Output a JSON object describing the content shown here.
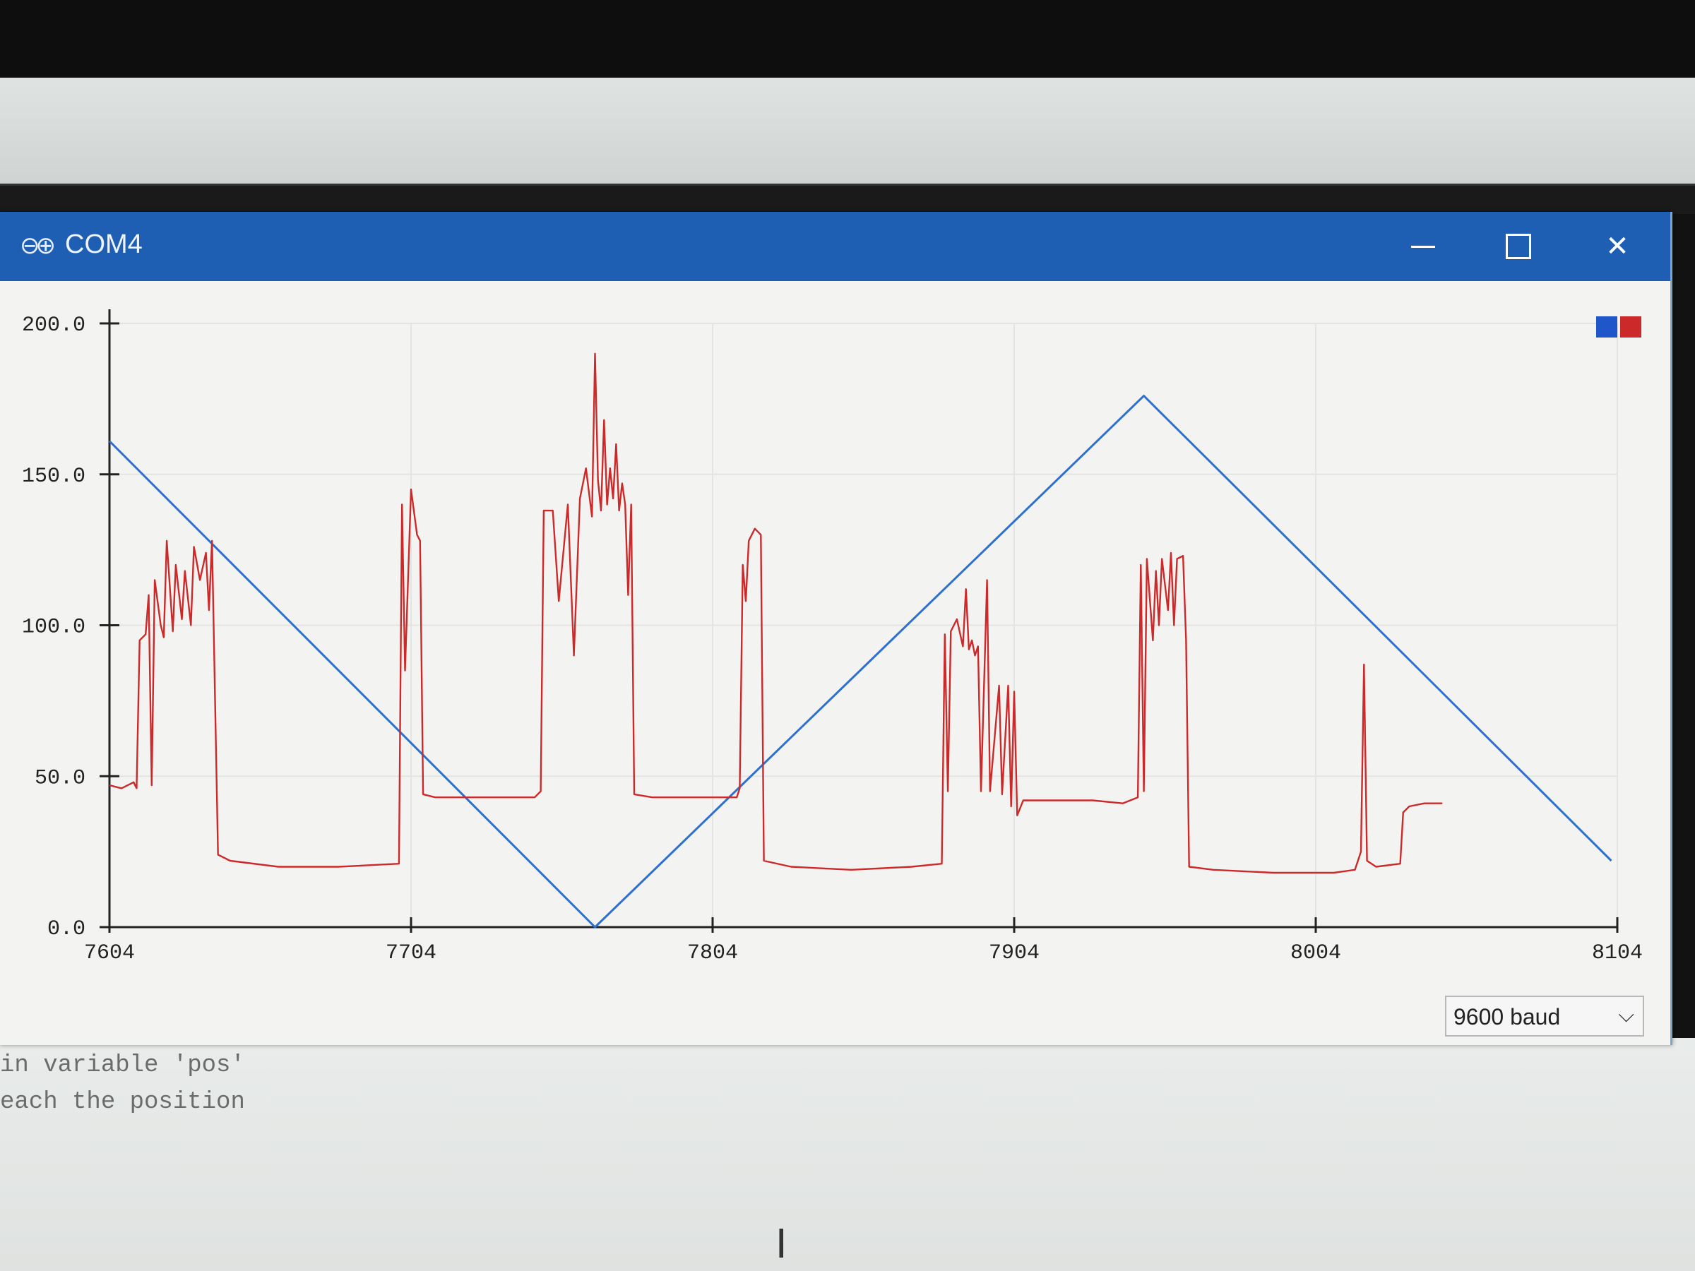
{
  "window": {
    "title": "COM4",
    "logo_glyph": "⊖⊕",
    "close_glyph": "✕"
  },
  "legend_colors": [
    "#1f56c9",
    "#cc2a2a"
  ],
  "baud": {
    "selected": "9600 baud",
    "chevron": "⌵"
  },
  "editor": {
    "lines": [
      "in variable 'pos'",
      "each the position"
    ]
  },
  "cursor_glyph": "I",
  "chart_data": {
    "type": "line",
    "ylim": [
      0,
      200
    ],
    "xlim": [
      7604,
      8104
    ],
    "y_tick_labels": [
      "200.0",
      "150.0",
      "100.0",
      "50.0",
      "0.0"
    ],
    "y_tick_values": [
      200,
      150,
      100,
      50,
      0
    ],
    "x_tick_labels": [
      "7604",
      "7704",
      "7804",
      "7904",
      "8004",
      "8104"
    ],
    "x_tick_values": [
      7604,
      7704,
      7804,
      7904,
      8004,
      8104
    ],
    "grid": true,
    "legend_placement": "top-right",
    "series": [
      {
        "color": "#2e6fd0",
        "points": [
          [
            7604,
            161
          ],
          [
            7765,
            0
          ],
          [
            7947,
            176
          ],
          [
            8102,
            22
          ]
        ]
      },
      {
        "color": "#cc2a2a",
        "points": [
          [
            7604,
            47
          ],
          [
            7608,
            46
          ],
          [
            7612,
            48
          ],
          [
            7613,
            46
          ],
          [
            7614,
            95
          ],
          [
            7616,
            97
          ],
          [
            7617,
            110
          ],
          [
            7618,
            47
          ],
          [
            7619,
            115
          ],
          [
            7621,
            100
          ],
          [
            7622,
            96
          ],
          [
            7623,
            128
          ],
          [
            7625,
            98
          ],
          [
            7626,
            120
          ],
          [
            7628,
            102
          ],
          [
            7629,
            118
          ],
          [
            7631,
            100
          ],
          [
            7632,
            126
          ],
          [
            7634,
            115
          ],
          [
            7636,
            124
          ],
          [
            7637,
            105
          ],
          [
            7638,
            128
          ],
          [
            7640,
            24
          ],
          [
            7644,
            22
          ],
          [
            7660,
            20
          ],
          [
            7680,
            20
          ],
          [
            7700,
            21
          ],
          [
            7701,
            140
          ],
          [
            7702,
            85
          ],
          [
            7704,
            145
          ],
          [
            7706,
            130
          ],
          [
            7707,
            128
          ],
          [
            7708,
            44
          ],
          [
            7712,
            43
          ],
          [
            7730,
            43
          ],
          [
            7745,
            43
          ],
          [
            7747,
            45
          ],
          [
            7748,
            138
          ],
          [
            7751,
            138
          ],
          [
            7753,
            108
          ],
          [
            7756,
            140
          ],
          [
            7758,
            90
          ],
          [
            7760,
            142
          ],
          [
            7762,
            152
          ],
          [
            7764,
            136
          ],
          [
            7765,
            190
          ],
          [
            7766,
            148
          ],
          [
            7767,
            138
          ],
          [
            7768,
            168
          ],
          [
            7769,
            140
          ],
          [
            7770,
            152
          ],
          [
            7771,
            142
          ],
          [
            7772,
            160
          ],
          [
            7773,
            138
          ],
          [
            7774,
            147
          ],
          [
            7775,
            140
          ],
          [
            7776,
            110
          ],
          [
            7777,
            140
          ],
          [
            7778,
            44
          ],
          [
            7784,
            43
          ],
          [
            7800,
            43
          ],
          [
            7812,
            43
          ],
          [
            7813,
            46
          ],
          [
            7814,
            120
          ],
          [
            7815,
            108
          ],
          [
            7816,
            128
          ],
          [
            7818,
            132
          ],
          [
            7820,
            130
          ],
          [
            7821,
            22
          ],
          [
            7830,
            20
          ],
          [
            7850,
            19
          ],
          [
            7870,
            20
          ],
          [
            7880,
            21
          ],
          [
            7881,
            97
          ],
          [
            7882,
            45
          ],
          [
            7883,
            98
          ],
          [
            7885,
            102
          ],
          [
            7887,
            93
          ],
          [
            7888,
            112
          ],
          [
            7889,
            92
          ],
          [
            7890,
            95
          ],
          [
            7891,
            90
          ],
          [
            7892,
            93
          ],
          [
            7893,
            45
          ],
          [
            7895,
            115
          ],
          [
            7896,
            45
          ],
          [
            7899,
            80
          ],
          [
            7900,
            44
          ],
          [
            7902,
            80
          ],
          [
            7903,
            40
          ],
          [
            7904,
            78
          ],
          [
            7905,
            37
          ],
          [
            7907,
            42
          ],
          [
            7930,
            42
          ],
          [
            7940,
            41
          ],
          [
            7945,
            43
          ],
          [
            7946,
            120
          ],
          [
            7947,
            45
          ],
          [
            7948,
            122
          ],
          [
            7950,
            95
          ],
          [
            7951,
            118
          ],
          [
            7952,
            100
          ],
          [
            7953,
            122
          ],
          [
            7955,
            105
          ],
          [
            7956,
            124
          ],
          [
            7957,
            100
          ],
          [
            7958,
            122
          ],
          [
            7960,
            123
          ],
          [
            7961,
            95
          ],
          [
            7962,
            20
          ],
          [
            7970,
            19
          ],
          [
            7990,
            18
          ],
          [
            8010,
            18
          ],
          [
            8017,
            19
          ],
          [
            8019,
            25
          ],
          [
            8020,
            87
          ],
          [
            8021,
            22
          ],
          [
            8024,
            20
          ],
          [
            8032,
            21
          ],
          [
            8033,
            38
          ],
          [
            8035,
            40
          ],
          [
            8040,
            41
          ],
          [
            8046,
            41
          ]
        ]
      }
    ]
  }
}
